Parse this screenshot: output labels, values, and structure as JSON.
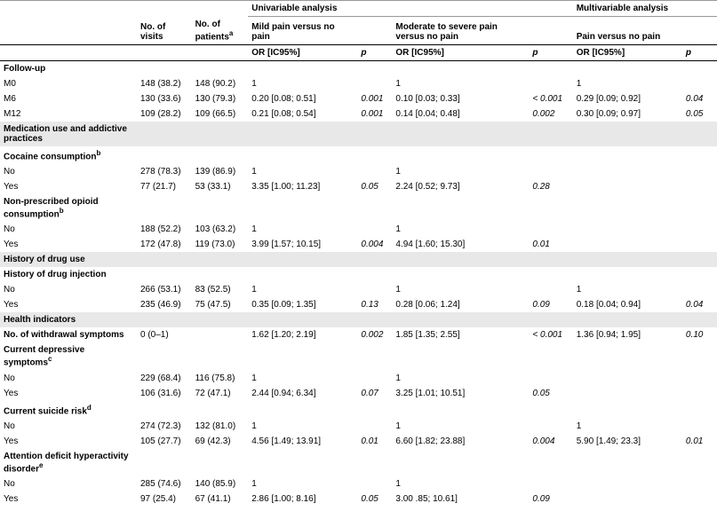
{
  "headers": {
    "univariable": "Univariable analysis",
    "multivariable": "Multivariable analysis",
    "visits": "No. of visits",
    "patients_html": "No. of patients",
    "patients_sup": "a",
    "mild": "Mild pain versus no pain",
    "modsev": "Moderate to severe pain versus no pain",
    "painvsno": "Pain versus no pain",
    "or": "OR [IC95%]",
    "p": "p"
  },
  "rows": [
    {
      "type": "section",
      "shaded": false,
      "label": "Follow-up"
    },
    {
      "type": "data",
      "label": "M0",
      "visits": "148 (38.2)",
      "patients": "148 (90.2)",
      "or1": "1",
      "p1": "",
      "or2": "1",
      "p2": "",
      "or3": "1",
      "p3": ""
    },
    {
      "type": "data",
      "label": "M6",
      "visits": "130 (33.6)",
      "patients": "130 (79.3)",
      "or1": "0.20 [0.08; 0.51]",
      "p1": "0.001",
      "or2": "0.10 [0.03; 0.33]",
      "p2": "< 0.001",
      "or3": "0.29 [0.09; 0.92]",
      "p3": "0.04"
    },
    {
      "type": "data",
      "label": "M12",
      "visits": "109 (28.2)",
      "patients": "109 (66.5)",
      "or1": "0.21 [0.08; 0.54]",
      "p1": "0.001",
      "or2": "0.14 [0.04; 0.48]",
      "p2": "0.002",
      "or3": "0.30 [0.09; 0.97]",
      "p3": "0.05"
    },
    {
      "type": "section",
      "shaded": true,
      "label": "Medication use and addictive practices"
    },
    {
      "type": "section",
      "shaded": false,
      "label": "Cocaine consumption",
      "sup": "b"
    },
    {
      "type": "data",
      "label": "No",
      "visits": "278 (78.3)",
      "patients": "139 (86.9)",
      "or1": "1",
      "p1": "",
      "or2": "1",
      "p2": "",
      "or3": "",
      "p3": ""
    },
    {
      "type": "data",
      "label": "Yes",
      "visits": "77 (21.7)",
      "patients": "53 (33.1)",
      "or1": "3.35 [1.00; 11.23]",
      "p1": "0.05",
      "or2": "2.24 [0.52; 9.73]",
      "p2": "0.28",
      "or3": "",
      "p3": ""
    },
    {
      "type": "section",
      "shaded": false,
      "label": "Non-prescribed opioid consumption",
      "sup": "b"
    },
    {
      "type": "data",
      "label": "No",
      "visits": "188 (52.2)",
      "patients": "103 (63.2)",
      "or1": "1",
      "p1": "",
      "or2": "1",
      "p2": "",
      "or3": "",
      "p3": ""
    },
    {
      "type": "data",
      "label": "Yes",
      "visits": "172 (47.8)",
      "patients": "119 (73.0)",
      "or1": "3.99 [1.57; 10.15]",
      "p1": "0.004",
      "or2": "4.94 [1.60; 15.30]",
      "p2": "0.01",
      "or3": "",
      "p3": ""
    },
    {
      "type": "section",
      "shaded": true,
      "label": "History of drug use"
    },
    {
      "type": "section",
      "shaded": false,
      "label": "History of drug injection"
    },
    {
      "type": "data",
      "label": "No",
      "visits": "266 (53.1)",
      "patients": "83 (52.5)",
      "or1": "1",
      "p1": "",
      "or2": "1",
      "p2": "",
      "or3": "1",
      "p3": ""
    },
    {
      "type": "data",
      "label": "Yes",
      "visits": "235 (46.9)",
      "patients": "75 (47.5)",
      "or1": "0.35 [0.09; 1.35]",
      "p1": "0.13",
      "or2": "0.28 [0.06; 1.24]",
      "p2": "0.09",
      "or3": "0.18 [0.04; 0.94]",
      "p3": "0.04"
    },
    {
      "type": "section",
      "shaded": true,
      "label": "Health indicators"
    },
    {
      "type": "data",
      "label": "No. of withdrawal symptoms",
      "bold": true,
      "visits": "0 (0–1)",
      "patients": "",
      "or1": "1.62 [1.20; 2.19]",
      "p1": "0.002",
      "or2": "1.85 [1.35; 2.55]",
      "p2": "< 0.001",
      "or3": "1.36 [0.94; 1.95]",
      "p3": "0.10"
    },
    {
      "type": "section",
      "shaded": false,
      "label": "Current depressive symptoms",
      "sup": "c"
    },
    {
      "type": "data",
      "label": "No",
      "visits": "229 (68.4)",
      "patients": "116 (75.8)",
      "or1": "1",
      "p1": "",
      "or2": "1",
      "p2": "",
      "or3": "",
      "p3": ""
    },
    {
      "type": "data",
      "label": "Yes",
      "visits": "106 (31.6)",
      "patients": "72 (47.1)",
      "or1": "2.44 [0.94; 6.34]",
      "p1": "0.07",
      "or2": "3.25 [1.01; 10.51]",
      "p2": "0.05",
      "or3": "",
      "p3": ""
    },
    {
      "type": "section",
      "shaded": false,
      "label": "Current suicide risk",
      "sup": "d"
    },
    {
      "type": "data",
      "label": "No",
      "visits": "274 (72.3)",
      "patients": "132 (81.0)",
      "or1": "1",
      "p1": "",
      "or2": "1",
      "p2": "",
      "or3": "1",
      "p3": ""
    },
    {
      "type": "data",
      "label": "Yes",
      "visits": "105 (27.7)",
      "patients": "69 (42.3)",
      "or1": "4.56 [1.49; 13.91]",
      "p1": "0.01",
      "or2": "6.60 [1.82; 23.88]",
      "p2": "0.004",
      "or3": "5.90 [1.49; 23.3]",
      "p3": "0.01"
    },
    {
      "type": "section",
      "shaded": false,
      "label": "Attention deficit hyperactivity disorder",
      "sup": "e"
    },
    {
      "type": "data",
      "label": "No",
      "visits": "285 (74.6)",
      "patients": "140 (85.9)",
      "or1": "1",
      "p1": "",
      "or2": "1",
      "p2": "",
      "or3": "",
      "p3": ""
    },
    {
      "type": "data",
      "label": "Yes",
      "visits": "97 (25.4)",
      "patients": "67 (41.1)",
      "or1": "2.86 [1.00; 8.16]",
      "p1": "0.05",
      "or2": "3.00 .85; 10.61]",
      "p2": "0.09",
      "or3": "",
      "p3": ""
    }
  ]
}
